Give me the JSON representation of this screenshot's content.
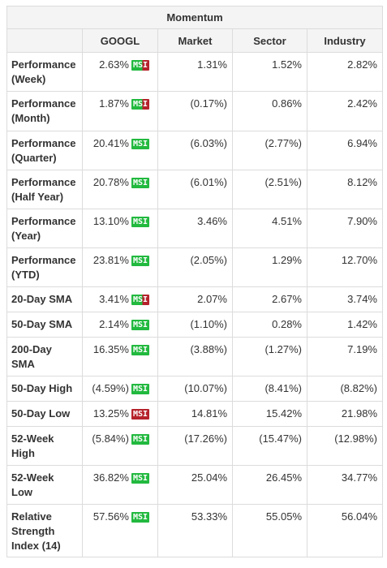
{
  "table": {
    "title": "Momentum",
    "columns": [
      "",
      "GOOGL",
      "Market",
      "Sector",
      "Industry"
    ],
    "badge_label": "MSI",
    "rows": [
      {
        "label": "Performance (Week)",
        "googl": "2.63%",
        "badge": "mixed",
        "market": "1.31%",
        "sector": "1.52%",
        "industry": "2.82%"
      },
      {
        "label": "Performance (Month)",
        "googl": "1.87%",
        "badge": "mixed",
        "market": "(0.17%)",
        "sector": "0.86%",
        "industry": "2.42%"
      },
      {
        "label": "Performance (Quarter)",
        "googl": "20.41%",
        "badge": "green",
        "market": "(6.03%)",
        "sector": "(2.77%)",
        "industry": "6.94%"
      },
      {
        "label": "Performance (Half Year)",
        "googl": "20.78%",
        "badge": "green",
        "market": "(6.01%)",
        "sector": "(2.51%)",
        "industry": "8.12%"
      },
      {
        "label": "Performance (Year)",
        "googl": "13.10%",
        "badge": "green",
        "market": "3.46%",
        "sector": "4.51%",
        "industry": "7.90%"
      },
      {
        "label": "Performance (YTD)",
        "googl": "23.81%",
        "badge": "green",
        "market": "(2.05%)",
        "sector": "1.29%",
        "industry": "12.70%"
      },
      {
        "label": "20-Day SMA",
        "googl": "3.41%",
        "badge": "mixed",
        "market": "2.07%",
        "sector": "2.67%",
        "industry": "3.74%"
      },
      {
        "label": "50-Day SMA",
        "googl": "2.14%",
        "badge": "green",
        "market": "(1.10%)",
        "sector": "0.28%",
        "industry": "1.42%"
      },
      {
        "label": "200-Day SMA",
        "googl": "16.35%",
        "badge": "green",
        "market": "(3.88%)",
        "sector": "(1.27%)",
        "industry": "7.19%"
      },
      {
        "label": "50-Day High",
        "googl": "(4.59%)",
        "badge": "green",
        "market": "(10.07%)",
        "sector": "(8.41%)",
        "industry": "(8.82%)"
      },
      {
        "label": "50-Day Low",
        "googl": "13.25%",
        "badge": "red",
        "market": "14.81%",
        "sector": "15.42%",
        "industry": "21.98%"
      },
      {
        "label": "52-Week High",
        "googl": "(5.84%)",
        "badge": "green",
        "market": "(17.26%)",
        "sector": "(15.47%)",
        "industry": "(12.98%)"
      },
      {
        "label": "52-Week Low",
        "googl": "36.82%",
        "badge": "green",
        "market": "25.04%",
        "sector": "26.45%",
        "industry": "34.77%"
      },
      {
        "label": "Relative Strength Index (14)",
        "googl": "57.56%",
        "badge": "green",
        "market": "53.33%",
        "sector": "55.05%",
        "industry": "56.04%"
      }
    ]
  },
  "colors": {
    "badge_green": "#22b93f",
    "badge_red": "#b5222b",
    "header_bg": "#f4f4f4",
    "border": "#dcdcdc"
  }
}
